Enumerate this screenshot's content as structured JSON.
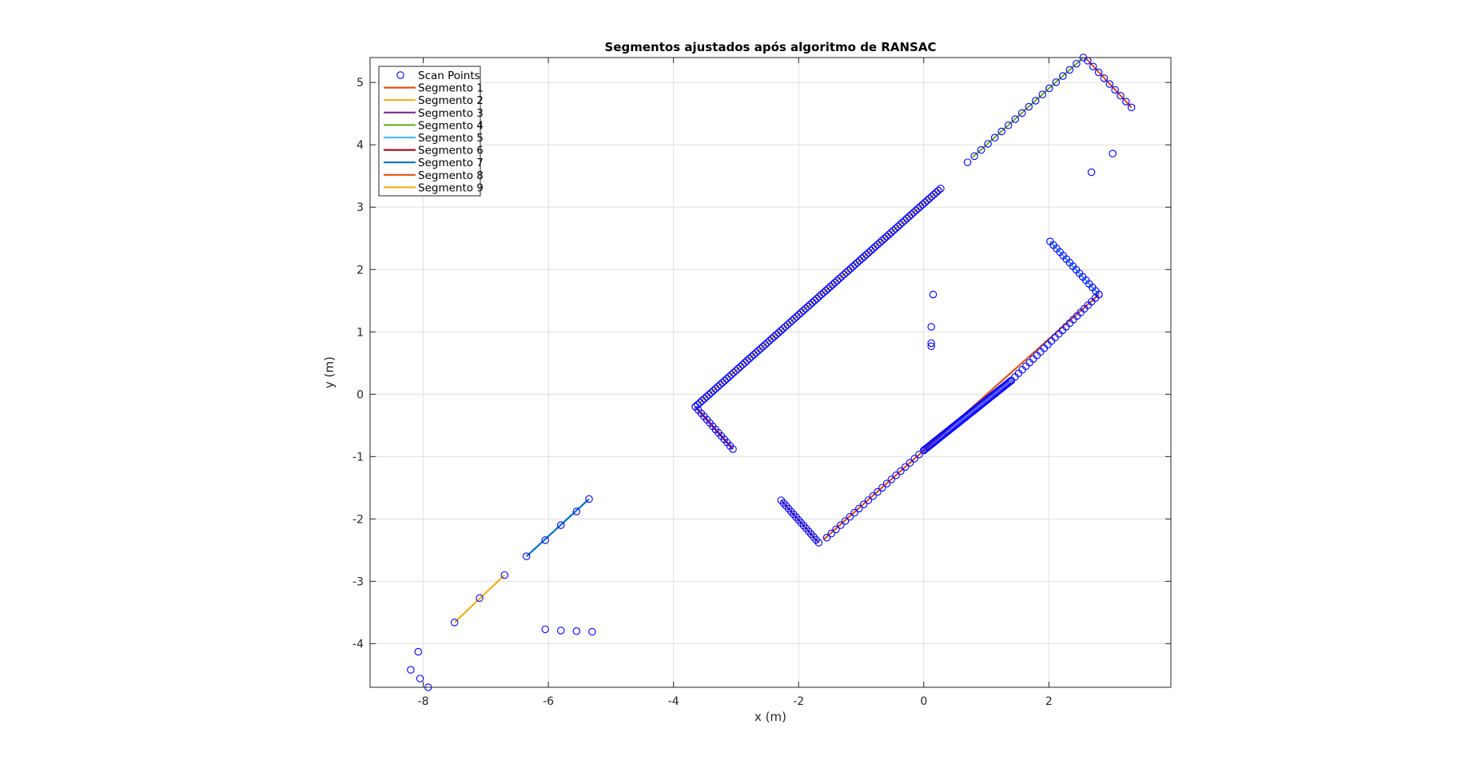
{
  "chart_data": {
    "type": "scatter",
    "title": "Segmentos ajustados após algoritmo de RANSAC",
    "xlabel": "x (m)",
    "ylabel": "y (m)",
    "xlim": [
      -8.85,
      3.95
    ],
    "ylim": [
      -4.7,
      5.4
    ],
    "xticks": [
      -8,
      -6,
      -4,
      -2,
      0,
      2
    ],
    "yticks": [
      -4,
      -3,
      -2,
      -1,
      0,
      1,
      2,
      3,
      4,
      5
    ],
    "grid": true,
    "legend": {
      "placement": "top-left"
    },
    "scan_points": {
      "name": "Scan Points",
      "color": "#0000ff",
      "groups": [
        {
          "from": [
            -3.65,
            -0.2
          ],
          "to": [
            0.27,
            3.3
          ],
          "n": 110
        },
        {
          "from": [
            -3.65,
            -0.2
          ],
          "to": [
            -3.05,
            -0.88
          ],
          "n": 14
        },
        {
          "from": [
            -2.28,
            -1.7
          ],
          "to": [
            -1.68,
            -2.38
          ],
          "n": 16
        },
        {
          "from": [
            -1.55,
            -2.3
          ],
          "to": [
            0.0,
            -0.9
          ],
          "n": 22
        },
        {
          "from": [
            0.0,
            -0.9
          ],
          "to": [
            1.4,
            0.22
          ],
          "n": 70
        },
        {
          "from": [
            1.4,
            0.22
          ],
          "to": [
            2.8,
            1.6
          ],
          "n": 25
        },
        {
          "from": [
            2.02,
            2.45
          ],
          "to": [
            2.8,
            1.6
          ],
          "n": 16
        },
        {
          "from": [
            0.7,
            3.72
          ],
          "to": [
            2.55,
            5.4
          ],
          "n": 18
        },
        {
          "from": [
            2.62,
            5.35
          ],
          "to": [
            3.32,
            4.6
          ],
          "n": 9
        }
      ],
      "points": [
        [
          0.15,
          1.6
        ],
        [
          0.12,
          1.08
        ],
        [
          0.12,
          0.82
        ],
        [
          0.12,
          0.77
        ],
        [
          2.68,
          3.56
        ],
        [
          3.02,
          3.86
        ],
        [
          -7.5,
          -3.66
        ],
        [
          -7.1,
          -3.27
        ],
        [
          -6.7,
          -2.9
        ],
        [
          -6.35,
          -2.6
        ],
        [
          -6.05,
          -2.34
        ],
        [
          -5.8,
          -2.1
        ],
        [
          -5.55,
          -1.88
        ],
        [
          -5.35,
          -1.68
        ],
        [
          -6.05,
          -3.77
        ],
        [
          -5.8,
          -3.79
        ],
        [
          -5.55,
          -3.8
        ],
        [
          -5.3,
          -3.81
        ],
        [
          -8.2,
          -4.42
        ],
        [
          -8.08,
          -4.13
        ],
        [
          -8.05,
          -4.56
        ],
        [
          -7.92,
          -4.7
        ]
      ]
    },
    "series": [
      {
        "name": "Segmento 1",
        "color": "#d95319",
        "x": [
          -1.6,
          2.8
        ],
        "y": [
          -2.33,
          1.6
        ]
      },
      {
        "name": "Segmento 2",
        "color": "#edb120",
        "x": [
          -3.62,
          0.27
        ],
        "y": [
          -0.17,
          3.3
        ]
      },
      {
        "name": "Segmento 3",
        "color": "#7e2f8e",
        "x": [
          -2.28,
          -1.68
        ],
        "y": [
          -1.7,
          -2.38
        ]
      },
      {
        "name": "Segmento 4",
        "color": "#77ac30",
        "x": [
          0.78,
          2.55
        ],
        "y": [
          3.8,
          5.4
        ]
      },
      {
        "name": "Segmento 5",
        "color": "#4dbeee",
        "x": [
          2.02,
          2.8
        ],
        "y": [
          2.45,
          1.6
        ]
      },
      {
        "name": "Segmento 6",
        "color": "#a2142f",
        "x": [
          -3.65,
          -3.05
        ],
        "y": [
          -0.2,
          -0.88
        ]
      },
      {
        "name": "Segmento 7",
        "color": "#0072bd",
        "x": [
          -6.35,
          -5.35
        ],
        "y": [
          -2.6,
          -1.68
        ]
      },
      {
        "name": "Segmento 8",
        "color": "#d95319",
        "x": [
          2.6,
          3.32
        ],
        "y": [
          5.38,
          4.6
        ]
      },
      {
        "name": "Segmento 9",
        "color": "#edb120",
        "x": [
          -7.5,
          -6.7
        ],
        "y": [
          -3.66,
          -2.9
        ]
      }
    ]
  }
}
